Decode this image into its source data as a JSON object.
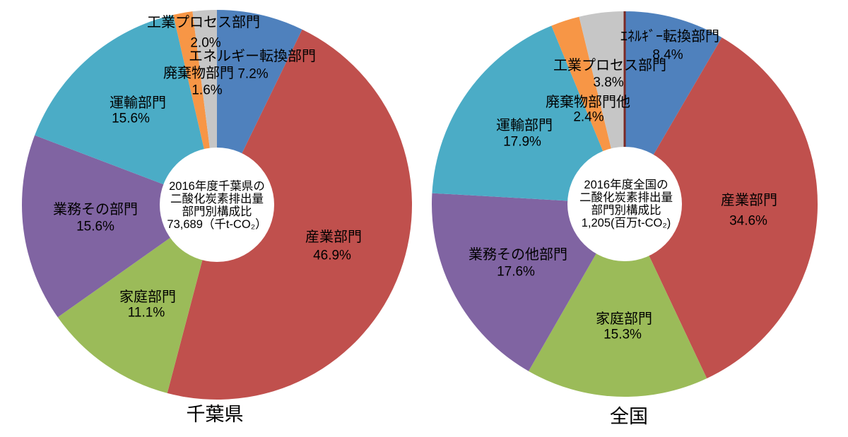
{
  "figure": {
    "background_color": "#ffffff",
    "text_color": "#000000"
  },
  "chart_data": [
    {
      "type": "pie",
      "style": "donut",
      "caption": "千葉県",
      "center_text_lines": [
        "2016年度千葉県の",
        "二酸化炭素排出量",
        "部門別構成比",
        "73,689（千t-CO₂）"
      ],
      "total_value": "73,689",
      "unit": "千t-CO₂",
      "start_angle_deg": 0,
      "direction": "clockwise",
      "donut_hole_ratio": 0.29,
      "legend": "none",
      "label_position": "outside",
      "sectors": [
        {
          "label": "エネルギー転換部門",
          "value": 7.2,
          "display": "7.2%",
          "color": "#4F81BD"
        },
        {
          "label": "産業部門",
          "value": 46.9,
          "display": "46.9%",
          "color": "#C0504D"
        },
        {
          "label": "家庭部門",
          "value": 11.1,
          "display": "11.1%",
          "color": "#9BBB59"
        },
        {
          "label": "業務その部門",
          "value": 15.6,
          "display": "15.6%",
          "color": "#8064A2"
        },
        {
          "label": "運輸部門",
          "value": 15.6,
          "display": "15.6%",
          "color": "#4BACC6"
        },
        {
          "label": "廃棄物部門",
          "value": 1.6,
          "display": "1.6%",
          "color": "#F79646"
        },
        {
          "label": "工業プロセス部門",
          "value": 2.0,
          "display": "2.0%",
          "color": "#C6C6C6"
        }
      ]
    },
    {
      "type": "pie",
      "style": "donut",
      "caption": "全国",
      "center_text_lines": [
        "2016年度全国の",
        "二酸化炭素排出量",
        "部門別構成比",
        "1,205(百万t-CO₂)"
      ],
      "total_value": "1,205",
      "unit": "百万t-CO₂",
      "start_angle_deg": 0,
      "direction": "clockwise",
      "donut_hole_ratio": 0.29,
      "legend": "none",
      "label_position": "outside",
      "start_marker_color": "#7A2A26",
      "sectors": [
        {
          "label": "ｴﾈﾙｷﾞｰ転換部門",
          "value": 8.4,
          "display": "8.4%",
          "color": "#4F81BD"
        },
        {
          "label": "産業部門",
          "value": 34.6,
          "display": "34.6%",
          "color": "#C0504D"
        },
        {
          "label": "家庭部門",
          "value": 15.3,
          "display": "15.3%",
          "color": "#9BBB59"
        },
        {
          "label": "業務その他部門",
          "value": 17.6,
          "display": "17.6%",
          "color": "#8064A2"
        },
        {
          "label": "運輸部門",
          "value": 17.9,
          "display": "17.9%",
          "color": "#4BACC6"
        },
        {
          "label": "廃棄物部門他",
          "value": 2.4,
          "display": "2.4%",
          "color": "#F79646"
        },
        {
          "label": "工業プロセス部門",
          "value": 3.8,
          "display": "3.8%",
          "color": "#C6C6C6"
        }
      ]
    }
  ]
}
